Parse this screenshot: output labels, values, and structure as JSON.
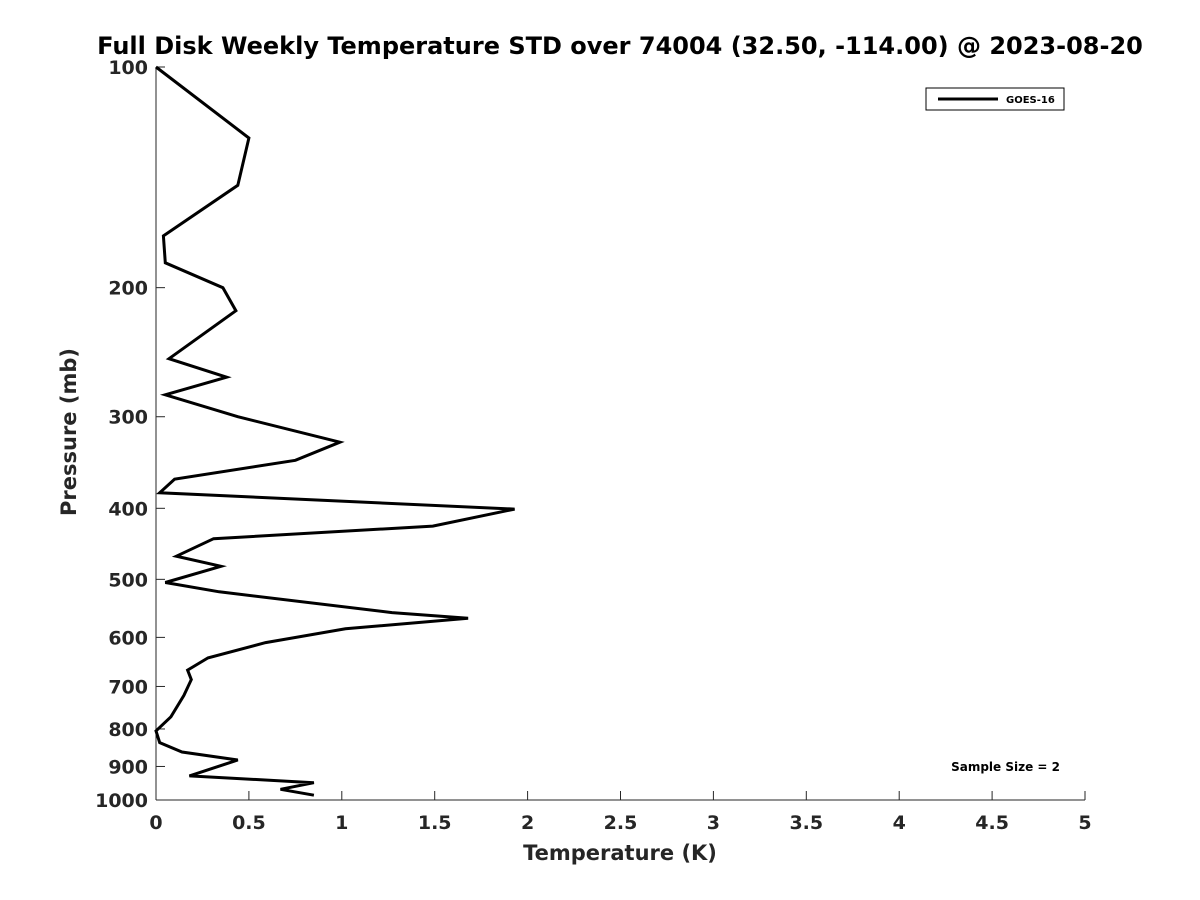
{
  "chart_data": {
    "type": "line",
    "title": "Full Disk Weekly Temperature STD over 74004 (32.50, -114.00) @ 2023-08-20",
    "xlabel": "Temperature (K)",
    "ylabel": "Pressure (mb)",
    "xlim": [
      0,
      5
    ],
    "ylim": [
      100,
      1000
    ],
    "y_scale": "log",
    "y_reversed": true,
    "grid": false,
    "legend_position": "top-right",
    "x_ticks": [
      "0",
      "0.5",
      "1",
      "1.5",
      "2",
      "2.5",
      "3",
      "3.5",
      "4",
      "4.5",
      "5"
    ],
    "y_ticks": [
      "100",
      "200",
      "300",
      "400",
      "500",
      "600",
      "700",
      "800",
      "900",
      "1000"
    ],
    "series": [
      {
        "name": "GOES-16",
        "color": "#000000",
        "points": [
          [
            0.0,
            100
          ],
          [
            0.5,
            125
          ],
          [
            0.44,
            145
          ],
          [
            0.04,
            170
          ],
          [
            0.05,
            185
          ],
          [
            0.36,
            200
          ],
          [
            0.43,
            215
          ],
          [
            0.07,
            250
          ],
          [
            0.38,
            265
          ],
          [
            0.05,
            280
          ],
          [
            0.44,
            300
          ],
          [
            0.99,
            325
          ],
          [
            0.75,
            344
          ],
          [
            0.1,
            365
          ],
          [
            0.02,
            381
          ],
          [
            1.93,
            401
          ],
          [
            1.49,
            423
          ],
          [
            0.31,
            440
          ],
          [
            0.11,
            465
          ],
          [
            0.35,
            480
          ],
          [
            0.05,
            505
          ],
          [
            0.34,
            520
          ],
          [
            1.27,
            555
          ],
          [
            1.68,
            565
          ],
          [
            1.02,
            584
          ],
          [
            0.59,
            610
          ],
          [
            0.28,
            640
          ],
          [
            0.17,
            665
          ],
          [
            0.19,
            685
          ],
          [
            0.15,
            720
          ],
          [
            0.08,
            770
          ],
          [
            0.0,
            805
          ],
          [
            0.02,
            835
          ],
          [
            0.14,
            860
          ],
          [
            0.44,
            882
          ],
          [
            0.18,
            927
          ],
          [
            0.85,
            947
          ],
          [
            0.67,
            967
          ],
          [
            0.85,
            985
          ]
        ]
      }
    ],
    "annotations": [
      "Sample Size = 2"
    ]
  }
}
